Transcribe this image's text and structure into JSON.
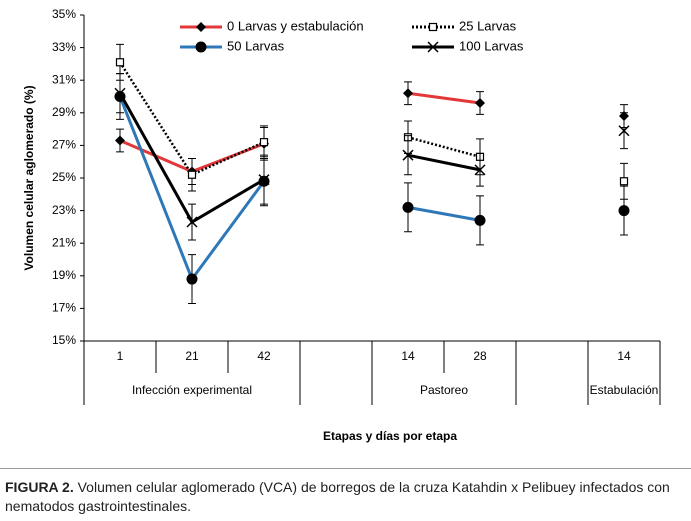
{
  "chart_data": {
    "type": "line",
    "ylabel": "Volumen celular aglomerado (%)",
    "xlabel": "Etapas y días por etapa",
    "categories": [
      "1",
      "21",
      "42",
      null,
      "14",
      "28",
      null,
      "14"
    ],
    "category_groups": [
      "Infección experimental",
      "Infección experimental",
      "Infección experimental",
      null,
      "Pastoreo",
      "Pastoreo",
      null,
      "Estabulación"
    ],
    "ylim": [
      15,
      35
    ],
    "yticks": [
      {
        "value": 15,
        "label": "15%"
      },
      {
        "value": 17,
        "label": "17%"
      },
      {
        "value": 19,
        "label": "19%"
      },
      {
        "value": 21,
        "label": "21%"
      },
      {
        "value": 23,
        "label": "23%"
      },
      {
        "value": 25,
        "label": "25%"
      },
      {
        "value": 27,
        "label": "27%"
      },
      {
        "value": 29,
        "label": "29%"
      },
      {
        "value": 31,
        "label": "31%"
      },
      {
        "value": 33,
        "label": "33%"
      },
      {
        "value": 35,
        "label": "35%"
      }
    ],
    "legend": "top",
    "series": [
      {
        "name": "0 Larvas y estabulación",
        "color": "#e2383a",
        "marker": "diamond",
        "dash": "solid",
        "values": [
          27.3,
          25.4,
          27.1,
          null,
          30.2,
          29.6,
          null,
          28.8
        ],
        "errors": [
          0.7,
          0.8,
          1.0,
          null,
          0.7,
          0.7,
          null,
          0.7
        ]
      },
      {
        "name": "25 Larvas",
        "color": "#000000",
        "marker": "square",
        "dash": "dotted",
        "values": [
          32.1,
          25.2,
          27.2,
          null,
          27.5,
          26.3,
          null,
          24.8
        ],
        "errors": [
          1.1,
          1.0,
          1.0,
          null,
          1.0,
          1.1,
          null,
          1.1
        ]
      },
      {
        "name": "50 Larvas",
        "color": "#2f78b7",
        "marker": "circle",
        "dash": "solid",
        "values": [
          30.0,
          18.8,
          24.8,
          null,
          23.2,
          22.4,
          null,
          23.0
        ],
        "errors": [
          1.4,
          1.5,
          1.5,
          null,
          1.5,
          1.5,
          null,
          1.5
        ]
      },
      {
        "name": "100 Larvas",
        "color": "#000000",
        "marker": "x",
        "dash": "solid",
        "values": [
          30.2,
          22.3,
          24.9,
          null,
          26.4,
          25.5,
          null,
          27.9
        ],
        "errors": [
          1.2,
          1.1,
          1.5,
          null,
          1.2,
          1.0,
          null,
          1.1
        ]
      }
    ]
  },
  "caption": {
    "label": "FIGURA 2.",
    "text": "Volumen celular aglomerado (VCA) de borregos de la cruza Katahdin x Pelibuey infectados con nematodos gastrointestinales."
  }
}
